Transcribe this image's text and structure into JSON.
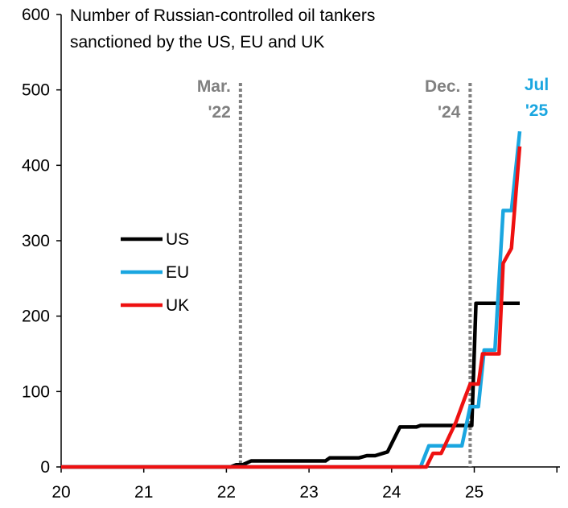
{
  "chart_data": {
    "type": "line",
    "title_lines": [
      "Number of Russian-controlled oil tankers",
      "sanctioned by the US, EU and UK"
    ],
    "xlabel": "",
    "ylabel": "",
    "xlim": [
      20,
      26
    ],
    "ylim": [
      0,
      600
    ],
    "x_ticks": [
      "20",
      "21",
      "22",
      "23",
      "24",
      "25"
    ],
    "y_ticks": [
      "0",
      "100",
      "200",
      "300",
      "400",
      "500",
      "600"
    ],
    "grid": false,
    "legend_position": "middle-left",
    "series": [
      {
        "name": "US",
        "color": "#000000",
        "points": [
          [
            20.0,
            0
          ],
          [
            22.05,
            0
          ],
          [
            22.12,
            3
          ],
          [
            22.2,
            3
          ],
          [
            22.3,
            8
          ],
          [
            23.2,
            8
          ],
          [
            23.25,
            12
          ],
          [
            23.6,
            12
          ],
          [
            23.7,
            15
          ],
          [
            23.8,
            15
          ],
          [
            23.95,
            20
          ],
          [
            24.1,
            53
          ],
          [
            24.3,
            53
          ],
          [
            24.35,
            55
          ],
          [
            24.97,
            55
          ],
          [
            25.02,
            217
          ],
          [
            25.55,
            217
          ]
        ]
      },
      {
        "name": "EU",
        "color": "#1aa6e0",
        "points": [
          [
            20.0,
            0
          ],
          [
            24.35,
            0
          ],
          [
            24.45,
            28
          ],
          [
            24.85,
            28
          ],
          [
            24.95,
            80
          ],
          [
            25.05,
            80
          ],
          [
            25.12,
            155
          ],
          [
            25.25,
            155
          ],
          [
            25.35,
            340
          ],
          [
            25.45,
            340
          ],
          [
            25.55,
            445
          ]
        ]
      },
      {
        "name": "UK",
        "color": "#ee1111",
        "points": [
          [
            20.0,
            0
          ],
          [
            24.42,
            0
          ],
          [
            24.5,
            18
          ],
          [
            24.6,
            18
          ],
          [
            24.78,
            60
          ],
          [
            24.88,
            90
          ],
          [
            24.95,
            110
          ],
          [
            25.05,
            110
          ],
          [
            25.1,
            150
          ],
          [
            25.3,
            150
          ],
          [
            25.35,
            270
          ],
          [
            25.45,
            290
          ],
          [
            25.55,
            425
          ]
        ]
      }
    ],
    "vlines": [
      {
        "x": 22.17,
        "label_lines": [
          "Mar.",
          "'22"
        ],
        "color": "#808080"
      },
      {
        "x": 24.95,
        "label_lines": [
          "Dec.",
          "'24"
        ],
        "color": "#808080"
      }
    ],
    "annotations": [
      {
        "label_lines": [
          "Jul",
          "'25"
        ],
        "color": "#1aa6e0"
      }
    ]
  }
}
